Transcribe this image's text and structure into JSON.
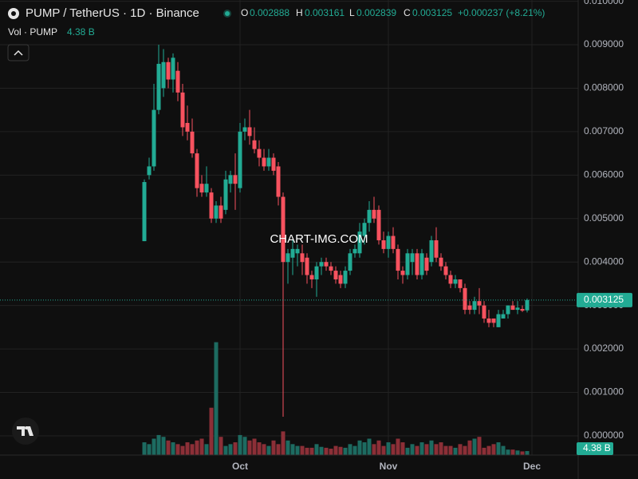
{
  "chart_data": {
    "type": "candlestick",
    "legend": {
      "symbol": "PUMP / TetherUS · 1D · Binance",
      "o_label": "O",
      "open": "0.002888",
      "h_label": "H",
      "high": "0.003161",
      "l_label": "L",
      "low": "0.002839",
      "c_label": "C",
      "close": "0.003125",
      "change": "+0.000237 (+8.21%)",
      "vol_label": "Vol · PUMP",
      "volume": "4.38 B"
    },
    "watermark": "CHART-IMG.COM",
    "up_color": "#22ab94",
    "down_color": "#f7525f",
    "up_volume_color": "#1d6b61",
    "down_volume_color": "#8c2f37",
    "grid": true,
    "categories": [
      null,
      null,
      null,
      null,
      null,
      null,
      null,
      null,
      null,
      null,
      null,
      null,
      null,
      null,
      null,
      null,
      null,
      null,
      null,
      null,
      "Oct",
      null,
      null,
      null,
      null,
      null,
      null,
      null,
      null,
      null,
      null,
      null,
      null,
      null,
      null,
      null,
      null,
      null,
      null,
      null,
      null,
      null,
      null,
      null,
      null,
      null,
      null,
      null,
      null,
      null,
      null,
      "Nov",
      null,
      null,
      null,
      null,
      null,
      null,
      null,
      null,
      null,
      null,
      null,
      null,
      null,
      null,
      null,
      null,
      null,
      null,
      null,
      null,
      null,
      null,
      null,
      null,
      null,
      null,
      null,
      null,
      null,
      "Dec"
    ],
    "open": [
      0.00448,
      0.006,
      0.0062,
      0.0075,
      0.008,
      0.0086,
      0.0082,
      0.0084,
      0.0079,
      0.0072,
      0.007,
      0.0065,
      0.0058,
      0.0056,
      0.0056,
      0.005,
      0.0053,
      0.0052,
      0.0058,
      0.006,
      0.0057,
      0.007,
      0.0071,
      0.0068,
      0.0066,
      0.0064,
      0.0062,
      0.0064,
      0.0062,
      0.0055,
      0.004,
      0.0041,
      0.0042,
      0.0042,
      0.0041,
      0.0037,
      0.0036,
      0.0039,
      0.004,
      0.0039,
      0.0038,
      0.0037,
      0.0035,
      0.0038,
      0.0042,
      0.0042,
      0.0046,
      0.0049,
      0.0052,
      0.0052,
      0.0045,
      0.0043,
      0.0046,
      0.0043,
      0.0038,
      0.0037,
      0.004,
      0.0042,
      0.0037,
      0.0041,
      0.004,
      0.0045,
      0.0041,
      0.0039,
      0.0037,
      0.0035,
      0.0036,
      0.0034,
      0.003,
      0.0029,
      0.0031,
      0.003,
      0.0027,
      0.0027,
      0.0025,
      0.0027,
      0.0028,
      0.003,
      0.0029,
      0.00292,
      0.002888,
      null
    ],
    "high": [
      0.0059,
      0.0064,
      0.0081,
      0.009,
      0.0089,
      0.0087,
      0.0088,
      0.0086,
      0.0081,
      0.0076,
      0.0073,
      0.0066,
      0.006,
      0.0062,
      0.0057,
      0.0054,
      0.0055,
      0.0061,
      0.0061,
      0.0065,
      0.0072,
      0.0073,
      0.0075,
      0.0071,
      0.0068,
      0.0066,
      0.0066,
      0.0065,
      0.0063,
      0.0056,
      0.0043,
      0.0045,
      0.0044,
      0.0044,
      0.0042,
      0.0038,
      0.004,
      0.0041,
      0.0041,
      0.004,
      0.0039,
      0.0038,
      0.0039,
      0.0043,
      0.0044,
      0.0049,
      0.005,
      0.0054,
      0.0055,
      0.0053,
      0.0047,
      0.0047,
      0.0048,
      0.0044,
      0.0039,
      0.0043,
      0.0043,
      0.0043,
      0.0043,
      0.0042,
      0.0046,
      0.0048,
      0.0042,
      0.004,
      0.0038,
      0.0037,
      0.0036,
      0.0035,
      0.0031,
      0.0032,
      0.0034,
      0.0031,
      0.0029,
      0.0027,
      0.0029,
      0.0029,
      0.003,
      0.0031,
      0.0031,
      0.003,
      0.003161,
      null
    ],
    "low": [
      0.00448,
      0.0059,
      0.0061,
      0.0074,
      0.0078,
      0.008,
      0.0079,
      0.0077,
      0.0069,
      0.0068,
      0.0064,
      0.0055,
      0.0055,
      0.0055,
      0.0049,
      0.0049,
      0.0049,
      0.0051,
      0.0056,
      0.0052,
      0.0056,
      0.0068,
      0.0067,
      0.0065,
      0.0062,
      0.0061,
      0.0061,
      0.006,
      0.0053,
      0.00044,
      0.0035,
      0.0037,
      0.0039,
      0.0037,
      0.0035,
      0.0034,
      0.0032,
      0.0037,
      0.0038,
      0.0037,
      0.0035,
      0.0034,
      0.0034,
      0.0037,
      0.0041,
      0.0041,
      0.0044,
      0.0047,
      0.0049,
      0.0044,
      0.0042,
      0.0041,
      0.0042,
      0.0036,
      0.0035,
      0.0036,
      0.0037,
      0.0036,
      0.0036,
      0.0037,
      0.0039,
      0.004,
      0.0038,
      0.0036,
      0.0034,
      0.0034,
      0.0033,
      0.0028,
      0.0028,
      0.0028,
      0.0028,
      0.0026,
      0.0025,
      0.0025,
      0.0025,
      0.0027,
      0.0027,
      0.0029,
      0.0028,
      0.00285,
      0.002839,
      null
    ],
    "close": [
      0.00584,
      0.0062,
      0.0075,
      0.00856,
      0.0086,
      0.0082,
      0.0087,
      0.0079,
      0.0071,
      0.007,
      0.0065,
      0.0057,
      0.0056,
      0.0058,
      0.005,
      0.0053,
      0.005,
      0.0059,
      0.006,
      0.0058,
      0.007,
      0.0071,
      0.0069,
      0.0066,
      0.0064,
      0.0062,
      0.0064,
      0.0061,
      0.0055,
      0.004,
      0.0042,
      0.0043,
      0.0043,
      0.004,
      0.0037,
      0.0036,
      0.0039,
      0.004,
      0.0039,
      0.0038,
      0.0036,
      0.0035,
      0.0038,
      0.0042,
      0.0043,
      0.0047,
      0.0049,
      0.0052,
      0.005,
      0.0045,
      0.0043,
      0.0046,
      0.0043,
      0.0038,
      0.0037,
      0.0042,
      0.0042,
      0.0037,
      0.0042,
      0.0038,
      0.0045,
      0.0041,
      0.0039,
      0.0037,
      0.0035,
      0.0036,
      0.0034,
      0.0029,
      0.0029,
      0.0031,
      0.003,
      0.0027,
      0.0026,
      0.0026,
      0.0028,
      0.0028,
      0.003,
      0.0029,
      0.00295,
      0.00288,
      0.003125,
      null
    ],
    "volume": [
      14,
      12,
      18,
      22,
      20,
      16,
      14,
      12,
      10,
      14,
      12,
      16,
      18,
      12,
      52,
      124,
      20,
      10,
      12,
      14,
      22,
      20,
      16,
      18,
      14,
      12,
      10,
      16,
      12,
      26,
      16,
      12,
      10,
      10,
      8,
      8,
      12,
      9,
      8,
      7,
      10,
      9,
      8,
      12,
      10,
      16,
      14,
      18,
      12,
      16,
      10,
      14,
      12,
      18,
      14,
      8,
      12,
      10,
      14,
      12,
      16,
      12,
      14,
      10,
      10,
      8,
      12,
      10,
      16,
      18,
      20,
      8,
      10,
      12,
      14,
      10,
      6,
      6,
      5,
      4,
      4.38,
      null
    ],
    "ylim": [
      -0.000442,
      0.010029
    ],
    "yticks": [
      {
        "value": 0,
        "label": "0.000000"
      },
      {
        "value": 0.001,
        "label": "0.001000"
      },
      {
        "value": 0.002,
        "label": "0.002000"
      },
      {
        "value": 0.003,
        "label": "0.003000"
      },
      {
        "value": 0.004,
        "label": "0.004000"
      },
      {
        "value": 0.005,
        "label": "0.005000"
      },
      {
        "value": 0.006,
        "label": "0.006000"
      },
      {
        "value": 0.007,
        "label": "0.007000"
      },
      {
        "value": 0.008,
        "label": "0.008000"
      },
      {
        "value": 0.009,
        "label": "0.009000"
      },
      {
        "value": 0.01,
        "label": "0.010000"
      }
    ],
    "y2lim": [
      0,
      500
    ]
  }
}
